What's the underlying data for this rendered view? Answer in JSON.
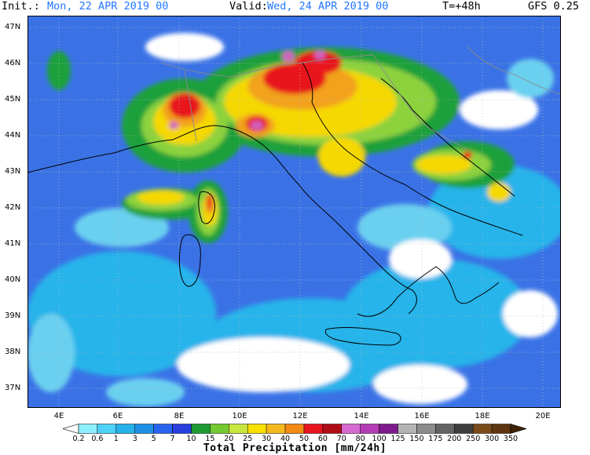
{
  "header": {
    "init_label": "Init.:",
    "init_value": "Mon, 22 APR 2019  00",
    "valid_label": "Valid:",
    "valid_value": "Wed, 24 APR 2019  00",
    "lead": "T=+48h",
    "model": "GFS 0.25"
  },
  "map": {
    "lat_labels": [
      "47N",
      "46N",
      "45N",
      "44N",
      "43N",
      "42N",
      "41N",
      "40N",
      "39N",
      "38N",
      "37N"
    ],
    "lon_labels": [
      "4E",
      "6E",
      "8E",
      "10E",
      "12E",
      "14E",
      "16E",
      "18E",
      "20E"
    ],
    "colors": {
      "sea": "#3a72e6",
      "trace": "#6ad0f0",
      "dry": "#ffffff",
      "light": "#28b4ea",
      "moderate": "#2860f0",
      "green": "#1fa03a",
      "lightgreen": "#8cd23c",
      "yellow": "#f5d800",
      "orange": "#f2a21a",
      "red": "#e8141e",
      "magenta": "#d060c0",
      "border": "#8a8a8a",
      "coast": "#000000",
      "grid": "#bbbbbb"
    }
  },
  "colorbar": {
    "labels": [
      "0.2",
      "0.6",
      "1",
      "3",
      "5",
      "7",
      "10",
      "15",
      "20",
      "25",
      "30",
      "40",
      "50",
      "60",
      "70",
      "80",
      "100",
      "125",
      "150",
      "175",
      "200",
      "250",
      "300",
      "350"
    ],
    "colors": [
      "#ffffff",
      "#8ef0ff",
      "#4fd2f7",
      "#25b2eb",
      "#1f90e6",
      "#2864f0",
      "#2a3fe0",
      "#1c9a34",
      "#74c832",
      "#c8e63c",
      "#f8e000",
      "#f5b91e",
      "#f28a14",
      "#e8141e",
      "#b00d17",
      "#d66ad0",
      "#b43cb4",
      "#7e1a8c",
      "#b4b4b4",
      "#8c8c8c",
      "#646464",
      "#3e3e3e",
      "#7a4a1a",
      "#5e3510",
      "#3e2208"
    ],
    "title": "Total Precipitation [mm/24h]"
  }
}
